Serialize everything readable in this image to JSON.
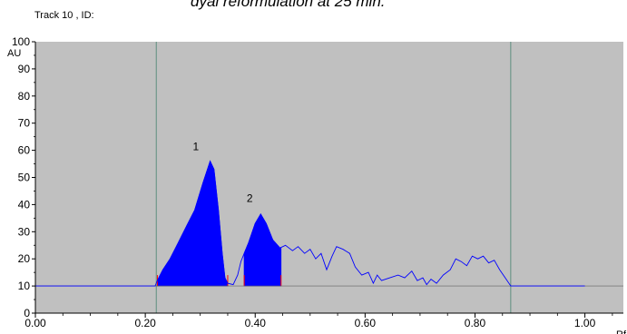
{
  "header": {
    "title": "dyal reformulation at 25 min.",
    "track_label": "Track  10 , ID:"
  },
  "chart_data": {
    "type": "line",
    "title": "",
    "xlabel": "Rf",
    "ylabel": "AU",
    "xlim": [
      0.0,
      1.07
    ],
    "ylim": [
      0,
      100
    ],
    "x_ticks": [
      0.0,
      0.2,
      0.4,
      0.6,
      0.8,
      1.0
    ],
    "x_tick_labels": [
      "0.00",
      "0.20",
      "0.40",
      "0.60",
      "0.80",
      "1.00"
    ],
    "y_ticks": [
      0,
      10,
      20,
      30,
      40,
      50,
      60,
      70,
      80,
      90,
      100
    ],
    "y_tick_labels": [
      "0",
      "10",
      "20",
      "30",
      "40",
      "50",
      "60",
      "70",
      "80",
      "90",
      "100"
    ],
    "grid": false,
    "colors": {
      "plot_bg": "#c0c0c0",
      "line": "#0000ff",
      "peak_fill": "#0000ff",
      "boundary": "#ff0000",
      "marker_line": "#5f8f7f",
      "baseline": "#000000"
    },
    "baseline": 10,
    "vertical_markers": [
      0.22,
      0.865
    ],
    "trace": [
      [
        0.0,
        10
      ],
      [
        0.218,
        10
      ],
      [
        0.222,
        12
      ],
      [
        0.232,
        16
      ],
      [
        0.245,
        20
      ],
      [
        0.26,
        26
      ],
      [
        0.275,
        32
      ],
      [
        0.29,
        38
      ],
      [
        0.305,
        48
      ],
      [
        0.318,
        56
      ],
      [
        0.325,
        53
      ],
      [
        0.333,
        38
      ],
      [
        0.34,
        22
      ],
      [
        0.345,
        13
      ],
      [
        0.35,
        11
      ],
      [
        0.36,
        10.5
      ],
      [
        0.368,
        14
      ],
      [
        0.374,
        19
      ],
      [
        0.38,
        22
      ],
      [
        0.388,
        26
      ],
      [
        0.4,
        33
      ],
      [
        0.41,
        36.5
      ],
      [
        0.42,
        33
      ],
      [
        0.432,
        27
      ],
      [
        0.445,
        24
      ],
      [
        0.455,
        25
      ],
      [
        0.468,
        23
      ],
      [
        0.478,
        24.5
      ],
      [
        0.49,
        22
      ],
      [
        0.5,
        23.5
      ],
      [
        0.51,
        20
      ],
      [
        0.52,
        22
      ],
      [
        0.53,
        16
      ],
      [
        0.54,
        21
      ],
      [
        0.548,
        24.5
      ],
      [
        0.56,
        23.5
      ],
      [
        0.572,
        22
      ],
      [
        0.582,
        17
      ],
      [
        0.594,
        14
      ],
      [
        0.606,
        15
      ],
      [
        0.615,
        11
      ],
      [
        0.622,
        14
      ],
      [
        0.63,
        12
      ],
      [
        0.645,
        13
      ],
      [
        0.66,
        14
      ],
      [
        0.672,
        13
      ],
      [
        0.685,
        15.5
      ],
      [
        0.695,
        12
      ],
      [
        0.705,
        13
      ],
      [
        0.712,
        10.5
      ],
      [
        0.72,
        12.5
      ],
      [
        0.73,
        11
      ],
      [
        0.742,
        14
      ],
      [
        0.755,
        16
      ],
      [
        0.765,
        20
      ],
      [
        0.775,
        19
      ],
      [
        0.785,
        17.5
      ],
      [
        0.795,
        21
      ],
      [
        0.805,
        20
      ],
      [
        0.815,
        21
      ],
      [
        0.825,
        18.5
      ],
      [
        0.835,
        19.5
      ],
      [
        0.845,
        16
      ],
      [
        0.855,
        13
      ],
      [
        0.865,
        10
      ],
      [
        1.0,
        10
      ]
    ],
    "peaks": [
      {
        "label": "1",
        "start": 0.222,
        "end": 0.35,
        "label_x": 0.292,
        "label_y": 60
      },
      {
        "label": "2",
        "start": 0.38,
        "end": 0.447,
        "label_x": 0.39,
        "label_y": 41
      }
    ]
  }
}
